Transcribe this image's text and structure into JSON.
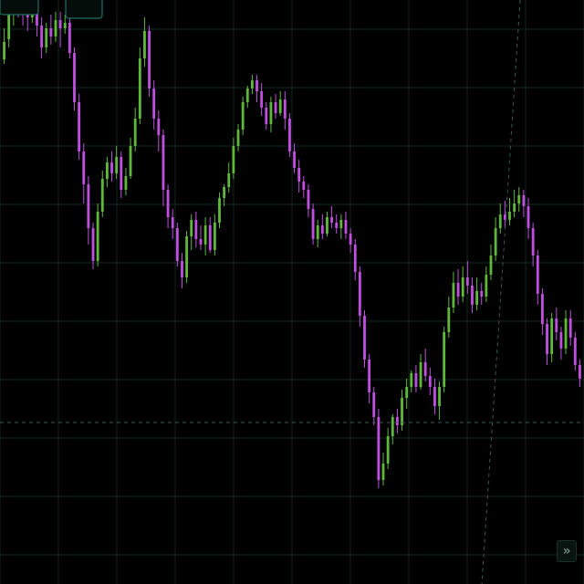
{
  "chart_data": {
    "type": "candlestick",
    "title": "",
    "xlabel": "",
    "ylabel": "",
    "ylim": [
      0,
      100
    ],
    "grid": true,
    "colors": {
      "up": "#5fb83a",
      "down": "#c04fe0",
      "background": "#000000",
      "grid": "#0f2a22",
      "crosshair": "#3a5a52"
    },
    "crosshair_y": 24.5,
    "candles": [
      [
        90.8,
        94.0,
        96.5,
        90.0
      ],
      [
        94.5,
        99.0,
        100.5,
        93.0
      ],
      [
        99.0,
        101.0,
        102.0,
        97.0
      ],
      [
        101.0,
        100.5,
        102.0,
        98.5
      ],
      [
        100.5,
        99.5,
        101.5,
        97.0
      ],
      [
        99.5,
        98.5,
        100.0,
        96.0
      ],
      [
        98.5,
        100.0,
        101.0,
        97.5
      ],
      [
        101.0,
        97.0,
        102.0,
        95.0
      ],
      [
        97.0,
        93.0,
        98.5,
        91.0
      ],
      [
        93.0,
        96.5,
        97.5,
        92.0
      ],
      [
        96.5,
        95.0,
        99.0,
        93.5
      ],
      [
        95.0,
        98.0,
        99.5,
        94.0
      ],
      [
        98.0,
        96.5,
        99.5,
        93.0
      ],
      [
        96.5,
        97.5,
        99.0,
        95.5
      ],
      [
        97.5,
        92.0,
        99.0,
        91.0
      ],
      [
        92.0,
        83.0,
        93.0,
        81.5
      ],
      [
        83.0,
        74.0,
        84.5,
        72.5
      ],
      [
        74.0,
        68.0,
        75.5,
        64.5
      ],
      [
        68.0,
        60.0,
        69.5,
        57.0
      ],
      [
        60.0,
        54.0,
        61.0,
        52.5
      ],
      [
        54.0,
        63.0,
        64.5,
        53.0
      ],
      [
        63.0,
        69.0,
        70.5,
        62.0
      ],
      [
        69.0,
        72.0,
        73.0,
        67.5
      ],
      [
        72.0,
        70.0,
        74.0,
        68.5
      ],
      [
        70.0,
        73.0,
        75.0,
        69.0
      ],
      [
        73.0,
        67.0,
        74.0,
        65.5
      ],
      [
        67.0,
        69.5,
        71.0,
        66.0
      ],
      [
        69.5,
        75.0,
        76.5,
        69.0
      ],
      [
        75.0,
        80.0,
        82.0,
        74.0
      ],
      [
        80.0,
        91.0,
        93.0,
        79.0
      ],
      [
        91.0,
        96.0,
        98.5,
        89.5
      ],
      [
        96.0,
        85.5,
        97.0,
        84.0
      ],
      [
        85.5,
        80.0,
        87.0,
        78.0
      ],
      [
        80.0,
        77.0,
        81.5,
        74.0
      ],
      [
        77.0,
        67.0,
        78.0,
        64.0
      ],
      [
        67.0,
        62.0,
        68.0,
        60.0
      ],
      [
        62.0,
        60.0,
        63.5,
        58.0
      ],
      [
        60.0,
        54.0,
        61.0,
        53.0
      ],
      [
        54.0,
        51.0,
        55.5,
        49.0
      ],
      [
        51.0,
        58.5,
        59.5,
        50.0
      ],
      [
        58.5,
        61.5,
        62.5,
        56.0
      ],
      [
        61.5,
        58.0,
        63.0,
        56.5
      ],
      [
        58.0,
        57.0,
        60.5,
        56.0
      ],
      [
        57.0,
        60.5,
        62.0,
        55.0
      ],
      [
        60.5,
        56.0,
        62.0,
        55.5
      ],
      [
        56.0,
        61.0,
        62.5,
        55.0
      ],
      [
        61.0,
        65.5,
        66.5,
        60.0
      ],
      [
        65.5,
        67.5,
        68.0,
        64.0
      ],
      [
        67.5,
        70.0,
        72.0,
        66.5
      ],
      [
        70.0,
        75.0,
        76.5,
        69.0
      ],
      [
        75.0,
        78.0,
        79.0,
        74.0
      ],
      [
        78.0,
        83.0,
        84.0,
        77.0
      ],
      [
        83.0,
        85.5,
        86.0,
        82.0
      ],
      [
        85.5,
        87.0,
        88.0,
        84.5
      ],
      [
        87.0,
        85.0,
        88.0,
        83.0
      ],
      [
        85.0,
        82.0,
        86.5,
        80.5
      ],
      [
        82.0,
        79.0,
        83.0,
        78.0
      ],
      [
        79.0,
        83.0,
        84.0,
        77.5
      ],
      [
        83.0,
        81.0,
        84.5,
        80.0
      ],
      [
        81.0,
        83.5,
        85.0,
        80.5
      ],
      [
        83.5,
        80.0,
        85.0,
        78.0
      ],
      [
        80.0,
        74.0,
        81.0,
        73.0
      ],
      [
        74.0,
        71.0,
        75.5,
        70.0
      ],
      [
        71.0,
        68.5,
        72.5,
        66.5
      ],
      [
        68.5,
        67.0,
        69.5,
        65.5
      ],
      [
        67.0,
        63.5,
        68.0,
        62.0
      ],
      [
        63.5,
        58.0,
        64.5,
        57.0
      ],
      [
        58.0,
        60.5,
        61.5,
        56.5
      ],
      [
        60.5,
        59.0,
        62.5,
        58.0
      ],
      [
        59.0,
        62.0,
        63.0,
        58.5
      ],
      [
        62.0,
        61.0,
        64.0,
        60.0
      ],
      [
        61.0,
        60.0,
        62.5,
        59.0
      ],
      [
        60.0,
        61.5,
        62.5,
        58.0
      ],
      [
        61.5,
        59.0,
        63.0,
        58.0
      ],
      [
        59.0,
        57.0,
        60.0,
        55.5
      ],
      [
        57.0,
        52.0,
        58.0,
        50.5
      ],
      [
        52.0,
        44.0,
        53.0,
        42.0
      ],
      [
        44.0,
        36.0,
        45.0,
        34.5
      ],
      [
        36.0,
        30.0,
        37.0,
        28.0
      ],
      [
        30.0,
        25.5,
        31.0,
        24.0
      ],
      [
        25.5,
        14.0,
        27.0,
        12.5
      ],
      [
        14.0,
        17.0,
        19.0,
        13.0
      ],
      [
        17.0,
        22.0,
        23.5,
        16.0
      ],
      [
        22.0,
        25.5,
        26.0,
        20.5
      ],
      [
        25.5,
        24.0,
        27.0,
        22.5
      ],
      [
        24.0,
        29.0,
        30.5,
        23.0
      ],
      [
        29.0,
        31.0,
        32.5,
        27.0
      ],
      [
        31.0,
        33.5,
        34.0,
        30.0
      ],
      [
        33.5,
        31.0,
        35.0,
        30.0
      ],
      [
        31.0,
        35.5,
        37.0,
        30.5
      ],
      [
        35.5,
        33.0,
        38.0,
        32.0
      ],
      [
        33.0,
        31.0,
        34.5,
        29.5
      ],
      [
        31.0,
        27.5,
        32.5,
        26.0
      ],
      [
        27.5,
        31.0,
        32.0,
        25.0
      ],
      [
        31.0,
        41.0,
        42.0,
        30.0
      ],
      [
        41.0,
        45.5,
        47.5,
        40.0
      ],
      [
        45.5,
        50.0,
        52.0,
        44.5
      ],
      [
        50.0,
        47.5,
        52.5,
        46.0
      ],
      [
        47.5,
        51.0,
        53.0,
        46.5
      ],
      [
        51.0,
        49.5,
        54.0,
        48.0
      ],
      [
        49.5,
        46.0,
        51.0,
        44.5
      ],
      [
        46.0,
        48.5,
        51.0,
        45.0
      ],
      [
        48.5,
        47.5,
        50.0,
        46.0
      ],
      [
        47.5,
        51.5,
        53.0,
        46.5
      ],
      [
        51.5,
        55.0,
        57.0,
        50.5
      ],
      [
        55.0,
        60.0,
        62.0,
        54.0
      ],
      [
        60.0,
        62.5,
        64.5,
        59.0
      ],
      [
        62.5,
        61.5,
        65.0,
        60.0
      ],
      [
        61.5,
        63.0,
        65.5,
        60.5
      ],
      [
        63.0,
        64.5,
        67.0,
        62.0
      ],
      [
        64.5,
        66.0,
        67.5,
        63.0
      ],
      [
        66.0,
        64.0,
        67.0,
        62.0
      ],
      [
        64.0,
        60.0,
        65.5,
        58.0
      ],
      [
        60.0,
        55.0,
        61.0,
        53.0
      ],
      [
        55.0,
        48.0,
        56.0,
        46.0
      ],
      [
        48.0,
        42.5,
        49.0,
        40.5
      ],
      [
        42.5,
        37.0,
        43.5,
        35.0
      ],
      [
        37.0,
        43.5,
        44.5,
        35.5
      ],
      [
        43.5,
        41.0,
        45.5,
        39.5
      ],
      [
        41.0,
        38.0,
        42.0,
        36.0
      ],
      [
        38.0,
        43.5,
        45.0,
        37.0
      ],
      [
        43.5,
        40.0,
        45.0,
        38.5
      ],
      [
        40.0,
        35.0,
        41.0,
        34.0
      ],
      [
        35.0,
        32.5,
        36.0,
        31.0
      ]
    ]
  },
  "controls": {
    "scroll_icon_glyph": "»"
  }
}
